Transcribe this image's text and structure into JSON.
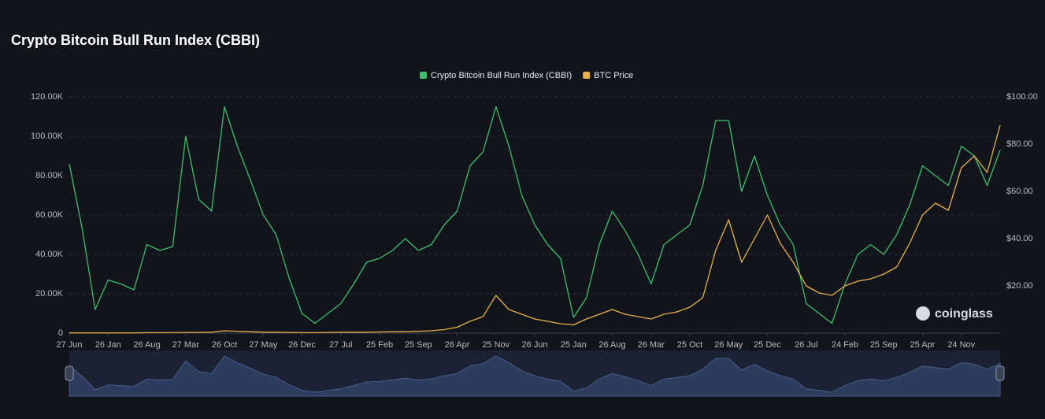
{
  "chart_data": {
    "type": "line",
    "title": "Crypto Bitcoin Bull Run Index (CBBI)",
    "watermark": "coinglass",
    "categories": [
      "27 Jun",
      null,
      null,
      "26 Jan",
      null,
      null,
      "26 Aug",
      null,
      null,
      "27 Mar",
      null,
      null,
      "26 Oct",
      null,
      null,
      "27 May",
      null,
      null,
      "26 Dec",
      null,
      null,
      "27 Jul",
      null,
      null,
      "25 Feb",
      null,
      null,
      "25 Sep",
      null,
      null,
      "26 Apr",
      null,
      null,
      "25 Nov",
      null,
      null,
      "26 Jun",
      null,
      null,
      "25 Jan",
      null,
      null,
      "26 Aug",
      null,
      null,
      "26 Mar",
      null,
      null,
      "25 Oct",
      null,
      null,
      "26 May",
      null,
      null,
      "25 Dec",
      null,
      null,
      "26 Jul",
      null,
      null,
      "24 Feb",
      null,
      null,
      "25 Sep",
      null,
      null,
      "25 Apr",
      null,
      null,
      "24 Nov",
      null,
      null,
      null
    ],
    "series": [
      {
        "name": "Crypto Bitcoin Bull Run Index (CBBI)",
        "color": "#3dbf6e",
        "axis": "y",
        "values": [
          86000,
          53000,
          12000,
          27000,
          25000,
          22000,
          45000,
          42000,
          44000,
          100000,
          68000,
          62000,
          115000,
          95000,
          78000,
          60000,
          50000,
          28000,
          10000,
          5000,
          10000,
          15000,
          25000,
          36000,
          38000,
          42000,
          48000,
          42000,
          45000,
          55000,
          62000,
          85000,
          92000,
          115000,
          95000,
          70000,
          55000,
          45000,
          38000,
          8000,
          18000,
          45000,
          62000,
          52000,
          40000,
          25000,
          45000,
          50000,
          55000,
          75000,
          108000,
          108000,
          72000,
          90000,
          70000,
          55000,
          45000,
          15000,
          10000,
          5000,
          25000,
          40000,
          45000,
          40000,
          50000,
          65000,
          85000,
          80000,
          75000,
          95000,
          90000,
          75000,
          93000
        ]
      },
      {
        "name": "BTC Price",
        "color": "#e8b24a",
        "axis": "y2",
        "values": [
          0.1,
          0.1,
          0.1,
          0.1,
          0.1,
          0.1,
          0.2,
          0.2,
          0.2,
          0.3,
          0.3,
          0.4,
          1.0,
          0.8,
          0.6,
          0.4,
          0.4,
          0.3,
          0.2,
          0.2,
          0.3,
          0.4,
          0.4,
          0.4,
          0.5,
          0.6,
          0.6,
          0.8,
          1.0,
          1.5,
          2.5,
          5,
          7,
          16,
          10,
          8,
          6,
          5,
          4,
          3.5,
          6,
          8,
          10,
          8,
          7,
          6,
          8,
          9,
          11,
          15,
          35,
          48,
          30,
          40,
          50,
          38,
          30,
          20,
          17,
          16,
          20,
          22,
          23,
          25,
          28,
          38,
          50,
          55,
          52,
          70,
          75,
          68,
          88
        ]
      }
    ],
    "ylim": [
      0,
      120000
    ],
    "yticks": [
      0,
      {
        "value": 20000,
        "label": "20.00K"
      },
      {
        "value": 40000,
        "label": "40.00K"
      },
      {
        "value": 60000,
        "label": "60.00K"
      },
      {
        "value": 80000,
        "label": "80.00K"
      },
      {
        "value": 100000,
        "label": "100.00K"
      },
      {
        "value": 120000,
        "label": "120.00K"
      }
    ],
    "y2lim": [
      0,
      100
    ],
    "y2ticks": [
      {
        "value": 20,
        "label": "$20.00"
      },
      {
        "value": 40,
        "label": "$40.00"
      },
      {
        "value": 60,
        "label": "$60.00"
      },
      {
        "value": 80,
        "label": "$80.00"
      },
      {
        "value": 100,
        "label": "$100.00"
      }
    ],
    "grid": true,
    "legend": "top"
  }
}
